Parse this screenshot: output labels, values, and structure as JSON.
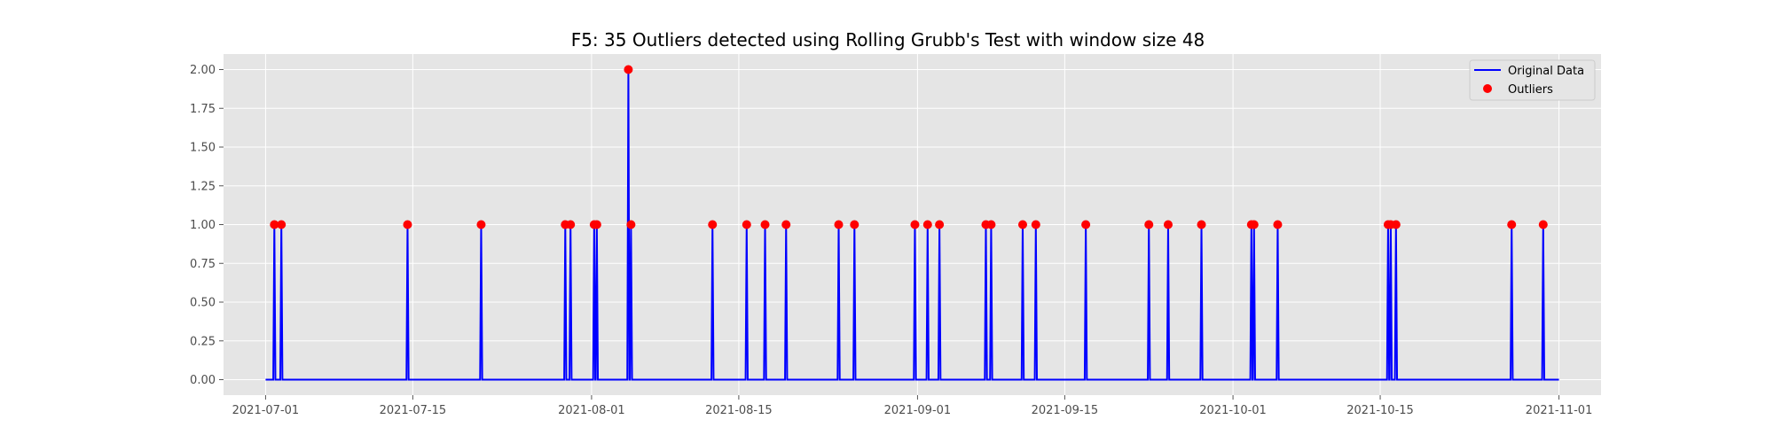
{
  "chart_data": {
    "type": "line",
    "title": "F5: 35 Outliers detected using Rolling Grubb's Test with window size 48",
    "xlabel": "",
    "ylabel": "",
    "x_range": [
      "2021-06-27",
      "2021-11-05"
    ],
    "ylim": [
      -0.1,
      2.1
    ],
    "grid": true,
    "legend_position": "top-right",
    "x_ticks": [
      "2021-07-01",
      "2021-07-15",
      "2021-08-01",
      "2021-08-15",
      "2021-09-01",
      "2021-09-15",
      "2021-10-01",
      "2021-10-15",
      "2021-11-01"
    ],
    "y_ticks": [
      "0.00",
      "0.25",
      "0.50",
      "0.75",
      "1.00",
      "1.25",
      "1.50",
      "1.75",
      "2.00"
    ],
    "series": [
      {
        "name": "Original Data",
        "kind": "line",
        "color": "#0000ff",
        "baseline": 0,
        "x_start": "2021-07-01",
        "x_end": "2021-11-01",
        "spikes": [
          {
            "x": "2021-07-01 20:00",
            "y": 1
          },
          {
            "x": "2021-07-02 12:00",
            "y": 1
          },
          {
            "x": "2021-07-14 12:00",
            "y": 1
          },
          {
            "x": "2021-07-21 12:00",
            "y": 1
          },
          {
            "x": "2021-07-29 12:00",
            "y": 1
          },
          {
            "x": "2021-07-30 00:00",
            "y": 1
          },
          {
            "x": "2021-08-01 06:00",
            "y": 1
          },
          {
            "x": "2021-08-01 12:00",
            "y": 1
          },
          {
            "x": "2021-08-04 12:00",
            "y": 2
          },
          {
            "x": "2021-08-04 18:00",
            "y": 1
          },
          {
            "x": "2021-08-12 12:00",
            "y": 1
          },
          {
            "x": "2021-08-15 18:00",
            "y": 1
          },
          {
            "x": "2021-08-17 12:00",
            "y": 1
          },
          {
            "x": "2021-08-19 12:00",
            "y": 1
          },
          {
            "x": "2021-08-24 12:00",
            "y": 1
          },
          {
            "x": "2021-08-26 00:00",
            "y": 1
          },
          {
            "x": "2021-08-31 18:00",
            "y": 1
          },
          {
            "x": "2021-09-01 23:00",
            "y": 1
          },
          {
            "x": "2021-09-03 02:00",
            "y": 1
          },
          {
            "x": "2021-09-07 12:00",
            "y": 1
          },
          {
            "x": "2021-09-08 00:00",
            "y": 1
          },
          {
            "x": "2021-09-11 00:00",
            "y": 1
          },
          {
            "x": "2021-09-12 06:00",
            "y": 1
          },
          {
            "x": "2021-09-17 00:00",
            "y": 1
          },
          {
            "x": "2021-09-23 00:00",
            "y": 1
          },
          {
            "x": "2021-09-24 20:00",
            "y": 1
          },
          {
            "x": "2021-09-28 00:00",
            "y": 1
          },
          {
            "x": "2021-10-02 18:00",
            "y": 1
          },
          {
            "x": "2021-10-03 00:00",
            "y": 1
          },
          {
            "x": "2021-10-05 06:00",
            "y": 1
          },
          {
            "x": "2021-10-15 18:00",
            "y": 1
          },
          {
            "x": "2021-10-16 00:00",
            "y": 1
          },
          {
            "x": "2021-10-16 12:00",
            "y": 1
          },
          {
            "x": "2021-10-27 12:00",
            "y": 1
          },
          {
            "x": "2021-10-30 12:00",
            "y": 1
          }
        ]
      },
      {
        "name": "Outliers",
        "kind": "scatter",
        "color": "#ff0000",
        "points": [
          {
            "x": "2021-07-01 20:00",
            "y": 1
          },
          {
            "x": "2021-07-02 12:00",
            "y": 1
          },
          {
            "x": "2021-07-14 12:00",
            "y": 1
          },
          {
            "x": "2021-07-21 12:00",
            "y": 1
          },
          {
            "x": "2021-07-29 12:00",
            "y": 1
          },
          {
            "x": "2021-07-30 00:00",
            "y": 1
          },
          {
            "x": "2021-08-01 06:00",
            "y": 1
          },
          {
            "x": "2021-08-01 12:00",
            "y": 1
          },
          {
            "x": "2021-08-04 12:00",
            "y": 2
          },
          {
            "x": "2021-08-04 18:00",
            "y": 1
          },
          {
            "x": "2021-08-12 12:00",
            "y": 1
          },
          {
            "x": "2021-08-15 18:00",
            "y": 1
          },
          {
            "x": "2021-08-17 12:00",
            "y": 1
          },
          {
            "x": "2021-08-19 12:00",
            "y": 1
          },
          {
            "x": "2021-08-24 12:00",
            "y": 1
          },
          {
            "x": "2021-08-26 00:00",
            "y": 1
          },
          {
            "x": "2021-08-31 18:00",
            "y": 1
          },
          {
            "x": "2021-09-01 23:00",
            "y": 1
          },
          {
            "x": "2021-09-03 02:00",
            "y": 1
          },
          {
            "x": "2021-09-07 12:00",
            "y": 1
          },
          {
            "x": "2021-09-08 00:00",
            "y": 1
          },
          {
            "x": "2021-09-11 00:00",
            "y": 1
          },
          {
            "x": "2021-09-12 06:00",
            "y": 1
          },
          {
            "x": "2021-09-17 00:00",
            "y": 1
          },
          {
            "x": "2021-09-23 00:00",
            "y": 1
          },
          {
            "x": "2021-09-24 20:00",
            "y": 1
          },
          {
            "x": "2021-09-28 00:00",
            "y": 1
          },
          {
            "x": "2021-10-02 18:00",
            "y": 1
          },
          {
            "x": "2021-10-03 00:00",
            "y": 1
          },
          {
            "x": "2021-10-05 06:00",
            "y": 1
          },
          {
            "x": "2021-10-15 18:00",
            "y": 1
          },
          {
            "x": "2021-10-16 00:00",
            "y": 1
          },
          {
            "x": "2021-10-16 12:00",
            "y": 1
          },
          {
            "x": "2021-10-27 12:00",
            "y": 1
          },
          {
            "x": "2021-10-30 12:00",
            "y": 1
          }
        ]
      }
    ]
  },
  "colors": {
    "plot_background": "#e5e5e5",
    "grid": "#ffffff",
    "line": "#0000ff",
    "outlier": "#ff0000"
  }
}
